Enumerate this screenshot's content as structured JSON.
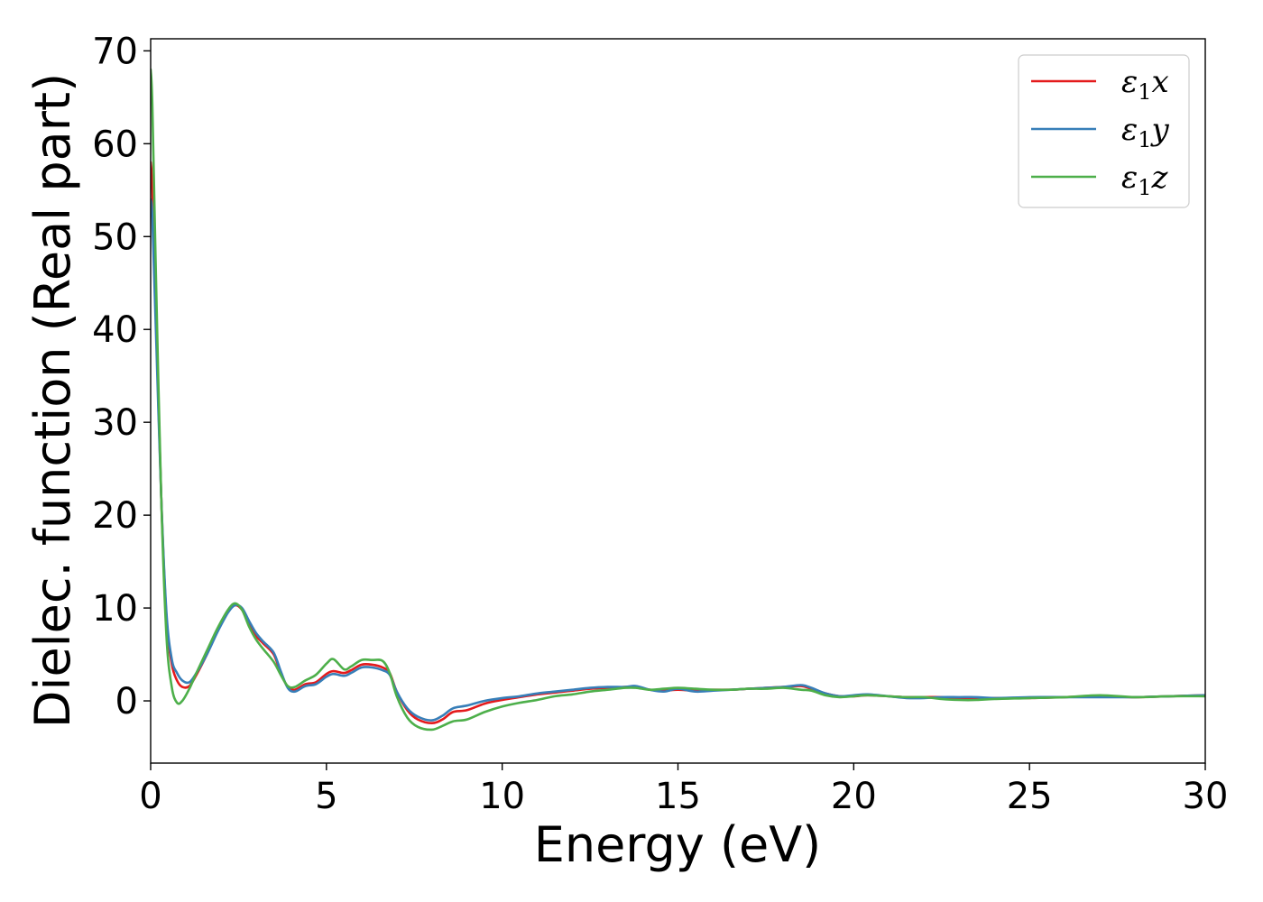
{
  "chart_data": {
    "type": "line",
    "xlabel": "Energy (eV)",
    "ylabel": "Dielec. function (Real part)",
    "xlim": [
      0,
      30
    ],
    "ylim": [
      -6.7,
      71.3
    ],
    "xticks": [
      0,
      5,
      10,
      15,
      20,
      25,
      30
    ],
    "yticks": [
      0,
      10,
      20,
      30,
      40,
      50,
      60,
      70
    ],
    "grid": false,
    "legend_position": "top-right",
    "series": [
      {
        "name": "ε1x",
        "legend": {
          "base": "ε",
          "sub": "1",
          "suffix": "x"
        },
        "color": "#e41a1c",
        "points": [
          [
            0,
            58
          ],
          [
            0.05,
            55
          ],
          [
            0.15,
            42
          ],
          [
            0.3,
            22
          ],
          [
            0.45,
            9
          ],
          [
            0.6,
            4
          ],
          [
            0.75,
            2.2
          ],
          [
            0.9,
            1.5
          ],
          [
            1.1,
            1.6
          ],
          [
            1.3,
            2.8
          ],
          [
            1.6,
            5
          ],
          [
            1.9,
            7.5
          ],
          [
            2.2,
            9.6
          ],
          [
            2.4,
            10.3
          ],
          [
            2.6,
            9.8
          ],
          [
            2.8,
            8.3
          ],
          [
            3.0,
            7.0
          ],
          [
            3.2,
            6.2
          ],
          [
            3.5,
            5.0
          ],
          [
            3.7,
            3.0
          ],
          [
            3.9,
            1.5
          ],
          [
            4.1,
            1.2
          ],
          [
            4.4,
            1.8
          ],
          [
            4.7,
            2.0
          ],
          [
            5.0,
            2.9
          ],
          [
            5.2,
            3.2
          ],
          [
            5.5,
            3.0
          ],
          [
            5.7,
            3.3
          ],
          [
            6.0,
            3.9
          ],
          [
            6.3,
            3.9
          ],
          [
            6.6,
            3.6
          ],
          [
            6.8,
            3.0
          ],
          [
            7.0,
            1.0
          ],
          [
            7.3,
            -1.0
          ],
          [
            7.6,
            -2.0
          ],
          [
            8.0,
            -2.4
          ],
          [
            8.3,
            -2.0
          ],
          [
            8.6,
            -1.2
          ],
          [
            9.0,
            -1.0
          ],
          [
            9.5,
            -0.3
          ],
          [
            10,
            0.1
          ],
          [
            10.5,
            0.4
          ],
          [
            11,
            0.7
          ],
          [
            11.5,
            0.9
          ],
          [
            12,
            1.1
          ],
          [
            12.5,
            1.3
          ],
          [
            13,
            1.4
          ],
          [
            13.5,
            1.5
          ],
          [
            13.8,
            1.5
          ],
          [
            14.2,
            1.2
          ],
          [
            14.6,
            1.1
          ],
          [
            15,
            1.2
          ],
          [
            15.5,
            1.1
          ],
          [
            16,
            1.2
          ],
          [
            16.5,
            1.2
          ],
          [
            17,
            1.3
          ],
          [
            17.5,
            1.4
          ],
          [
            18,
            1.5
          ],
          [
            18.5,
            1.6
          ],
          [
            18.8,
            1.3
          ],
          [
            19.2,
            0.8
          ],
          [
            19.6,
            0.5
          ],
          [
            20,
            0.5
          ],
          [
            20.4,
            0.6
          ],
          [
            21,
            0.5
          ],
          [
            21.5,
            0.4
          ],
          [
            22,
            0.4
          ],
          [
            22.5,
            0.4
          ],
          [
            23,
            0.3
          ],
          [
            23.5,
            0.3
          ],
          [
            24,
            0.3
          ],
          [
            25,
            0.3
          ],
          [
            26,
            0.4
          ],
          [
            27,
            0.5
          ],
          [
            28,
            0.4
          ],
          [
            29,
            0.5
          ],
          [
            30,
            0.6
          ]
        ]
      },
      {
        "name": "ε1y",
        "legend": {
          "base": "ε",
          "sub": "1",
          "suffix": "y"
        },
        "color": "#377eb8",
        "points": [
          [
            0,
            54
          ],
          [
            0.05,
            52
          ],
          [
            0.15,
            40
          ],
          [
            0.3,
            22
          ],
          [
            0.45,
            9.5
          ],
          [
            0.6,
            4.5
          ],
          [
            0.75,
            3.0
          ],
          [
            0.9,
            2.2
          ],
          [
            1.1,
            2.0
          ],
          [
            1.3,
            3.0
          ],
          [
            1.6,
            5.0
          ],
          [
            1.9,
            7.4
          ],
          [
            2.2,
            9.5
          ],
          [
            2.4,
            10.3
          ],
          [
            2.6,
            10.0
          ],
          [
            2.8,
            8.6
          ],
          [
            3.0,
            7.3
          ],
          [
            3.2,
            6.4
          ],
          [
            3.5,
            5.2
          ],
          [
            3.7,
            3.2
          ],
          [
            3.9,
            1.4
          ],
          [
            4.1,
            1.0
          ],
          [
            4.4,
            1.6
          ],
          [
            4.7,
            1.8
          ],
          [
            5.0,
            2.6
          ],
          [
            5.2,
            2.9
          ],
          [
            5.5,
            2.7
          ],
          [
            5.7,
            3.0
          ],
          [
            6.0,
            3.6
          ],
          [
            6.3,
            3.6
          ],
          [
            6.6,
            3.3
          ],
          [
            6.8,
            2.8
          ],
          [
            7.0,
            1.0
          ],
          [
            7.3,
            -0.8
          ],
          [
            7.6,
            -1.7
          ],
          [
            8.0,
            -2.1
          ],
          [
            8.3,
            -1.6
          ],
          [
            8.6,
            -0.8
          ],
          [
            9.0,
            -0.5
          ],
          [
            9.5,
            0.0
          ],
          [
            10,
            0.3
          ],
          [
            10.5,
            0.5
          ],
          [
            11,
            0.8
          ],
          [
            11.5,
            1.0
          ],
          [
            12,
            1.2
          ],
          [
            12.5,
            1.4
          ],
          [
            13,
            1.5
          ],
          [
            13.5,
            1.5
          ],
          [
            13.8,
            1.6
          ],
          [
            14.2,
            1.2
          ],
          [
            14.6,
            1.0
          ],
          [
            15,
            1.3
          ],
          [
            15.5,
            1.0
          ],
          [
            16,
            1.1
          ],
          [
            16.5,
            1.2
          ],
          [
            17,
            1.3
          ],
          [
            17.5,
            1.4
          ],
          [
            18,
            1.5
          ],
          [
            18.5,
            1.7
          ],
          [
            18.8,
            1.4
          ],
          [
            19.2,
            0.8
          ],
          [
            19.6,
            0.5
          ],
          [
            20,
            0.6
          ],
          [
            20.4,
            0.7
          ],
          [
            21,
            0.5
          ],
          [
            21.5,
            0.3
          ],
          [
            22,
            0.3
          ],
          [
            22.5,
            0.4
          ],
          [
            23,
            0.4
          ],
          [
            23.5,
            0.4
          ],
          [
            24,
            0.3
          ],
          [
            25,
            0.4
          ],
          [
            26,
            0.4
          ],
          [
            27,
            0.4
          ],
          [
            28,
            0.4
          ],
          [
            29,
            0.5
          ],
          [
            30,
            0.6
          ]
        ]
      },
      {
        "name": "ε1z",
        "legend": {
          "base": "ε",
          "sub": "1",
          "suffix": "z"
        },
        "color": "#4daf4a",
        "points": [
          [
            0,
            68
          ],
          [
            0.05,
            64
          ],
          [
            0.15,
            46
          ],
          [
            0.3,
            22
          ],
          [
            0.45,
            7
          ],
          [
            0.6,
            1.5
          ],
          [
            0.75,
            -0.2
          ],
          [
            0.9,
            0.0
          ],
          [
            1.1,
            1.3
          ],
          [
            1.3,
            3.0
          ],
          [
            1.6,
            5.4
          ],
          [
            1.9,
            7.8
          ],
          [
            2.2,
            9.8
          ],
          [
            2.4,
            10.5
          ],
          [
            2.6,
            9.8
          ],
          [
            2.8,
            8.0
          ],
          [
            3.0,
            6.6
          ],
          [
            3.2,
            5.6
          ],
          [
            3.5,
            4.2
          ],
          [
            3.7,
            2.8
          ],
          [
            3.9,
            1.6
          ],
          [
            4.1,
            1.5
          ],
          [
            4.4,
            2.2
          ],
          [
            4.7,
            2.8
          ],
          [
            5.0,
            4.0
          ],
          [
            5.2,
            4.5
          ],
          [
            5.5,
            3.4
          ],
          [
            5.7,
            3.7
          ],
          [
            6.0,
            4.4
          ],
          [
            6.3,
            4.4
          ],
          [
            6.6,
            4.3
          ],
          [
            6.8,
            3.0
          ],
          [
            7.0,
            0.5
          ],
          [
            7.3,
            -1.8
          ],
          [
            7.6,
            -2.8
          ],
          [
            8.0,
            -3.1
          ],
          [
            8.3,
            -2.7
          ],
          [
            8.6,
            -2.2
          ],
          [
            9.0,
            -2.0
          ],
          [
            9.5,
            -1.2
          ],
          [
            10,
            -0.6
          ],
          [
            10.5,
            -0.2
          ],
          [
            11,
            0.1
          ],
          [
            11.5,
            0.5
          ],
          [
            12,
            0.7
          ],
          [
            12.5,
            1.0
          ],
          [
            13,
            1.2
          ],
          [
            13.5,
            1.4
          ],
          [
            13.8,
            1.4
          ],
          [
            14.2,
            1.2
          ],
          [
            14.6,
            1.3
          ],
          [
            15,
            1.4
          ],
          [
            15.5,
            1.3
          ],
          [
            16,
            1.2
          ],
          [
            16.5,
            1.2
          ],
          [
            17,
            1.3
          ],
          [
            17.5,
            1.3
          ],
          [
            18,
            1.4
          ],
          [
            18.5,
            1.2
          ],
          [
            18.8,
            1.1
          ],
          [
            19.2,
            0.6
          ],
          [
            19.6,
            0.4
          ],
          [
            20,
            0.5
          ],
          [
            20.4,
            0.6
          ],
          [
            21,
            0.5
          ],
          [
            21.5,
            0.4
          ],
          [
            22,
            0.4
          ],
          [
            22.5,
            0.2
          ],
          [
            23,
            0.1
          ],
          [
            23.5,
            0.1
          ],
          [
            24,
            0.2
          ],
          [
            25,
            0.3
          ],
          [
            26,
            0.4
          ],
          [
            27,
            0.6
          ],
          [
            28,
            0.4
          ],
          [
            29,
            0.5
          ],
          [
            30,
            0.5
          ]
        ]
      }
    ]
  }
}
